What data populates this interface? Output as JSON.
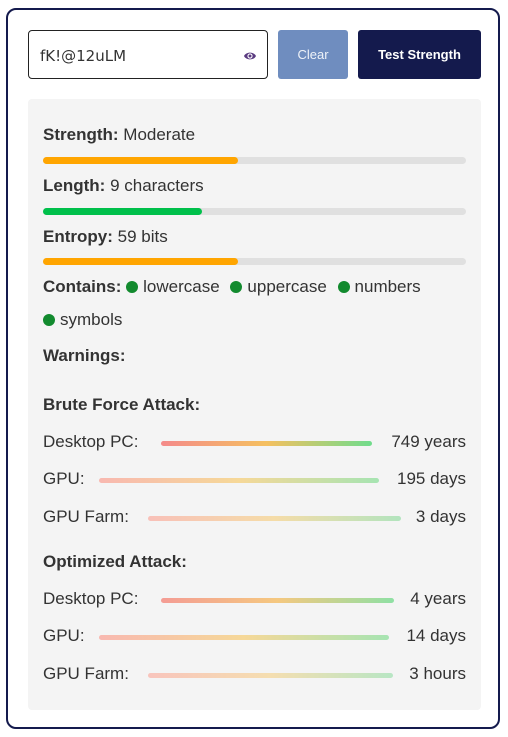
{
  "input": {
    "value": "fK!@12uLM",
    "eye_icon": "eye-icon"
  },
  "buttons": {
    "clear": "Clear",
    "test": "Test Strength"
  },
  "results": {
    "strength": {
      "label": "Strength:",
      "value": "Moderate",
      "fraction": 0.46,
      "color": "#ffa500"
    },
    "length": {
      "label": "Length:",
      "value": "9 characters",
      "fraction": 0.375,
      "color": "#00c04b"
    },
    "entropy": {
      "label": "Entropy:",
      "value": "59 bits",
      "fraction": 0.46,
      "color": "#ffa500"
    },
    "contains": {
      "label": "Contains:",
      "items": [
        "lowercase",
        "uppercase",
        "numbers",
        "symbols"
      ],
      "dot_color": "#128a2e"
    },
    "warnings": {
      "label": "Warnings:"
    }
  },
  "brute_force": {
    "title": "Brute Force Attack:",
    "rows": [
      {
        "label": "Desktop PC:",
        "time": "749 years"
      },
      {
        "label": "GPU:",
        "time": "195 days"
      },
      {
        "label": "GPU Farm:",
        "time": "3 days"
      }
    ]
  },
  "optimized": {
    "title": "Optimized Attack:",
    "rows": [
      {
        "label": "Desktop PC:",
        "time": "4 years"
      },
      {
        "label": "GPU:",
        "time": "14 days"
      },
      {
        "label": "GPU Farm:",
        "time": "3 hours"
      }
    ]
  },
  "colors": {
    "frame_border": "#141a4d",
    "clear_button": "#6f8dbf",
    "test_button": "#141a4d",
    "panel_background": "#f4f4f4",
    "track": "#e0e0e0"
  }
}
